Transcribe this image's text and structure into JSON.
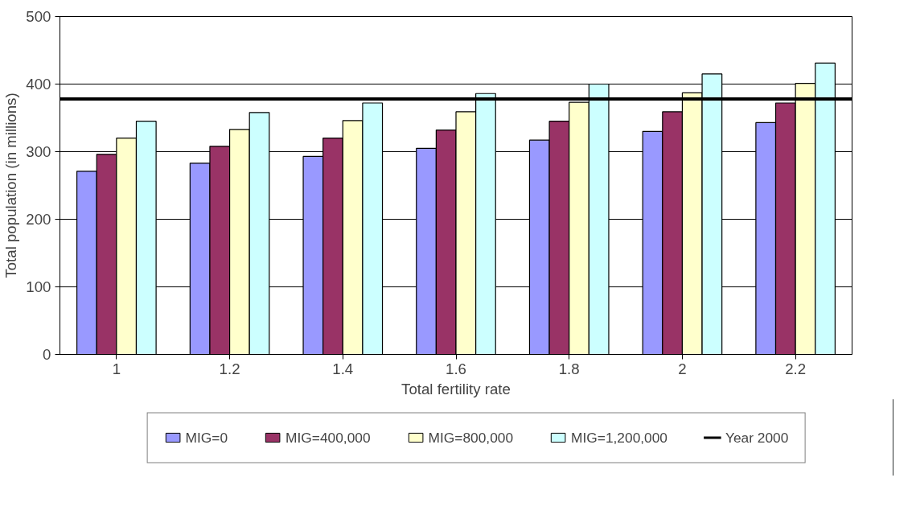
{
  "chart_data": {
    "type": "bar",
    "xlabel": "Total fertility rate",
    "ylabel": "Total population (in millions)",
    "categories": [
      "1",
      "1.2",
      "1.4",
      "1.6",
      "1.8",
      "2",
      "2.2"
    ],
    "series": [
      {
        "name": "MIG=0",
        "color": "#9999ff",
        "values": [
          271,
          283,
          293,
          305,
          317,
          330,
          343
        ]
      },
      {
        "name": "MIG=400,000",
        "color": "#993366",
        "values": [
          296,
          308,
          320,
          332,
          345,
          359,
          372
        ]
      },
      {
        "name": "MIG=800,000",
        "color": "#ffffcc",
        "values": [
          320,
          333,
          346,
          359,
          373,
          387,
          401
        ]
      },
      {
        "name": "MIG=1,200,000",
        "color": "#ccffff",
        "values": [
          345,
          358,
          372,
          386,
          400,
          415,
          431
        ]
      }
    ],
    "ref_lines": [
      {
        "axis": "y",
        "value": 378,
        "label": "Year 2000",
        "color": "#000000"
      }
    ],
    "ylim": [
      0,
      500
    ],
    "yticks": [
      0,
      100,
      200,
      300,
      400,
      500
    ],
    "grid": "y",
    "legend": "bottom"
  }
}
